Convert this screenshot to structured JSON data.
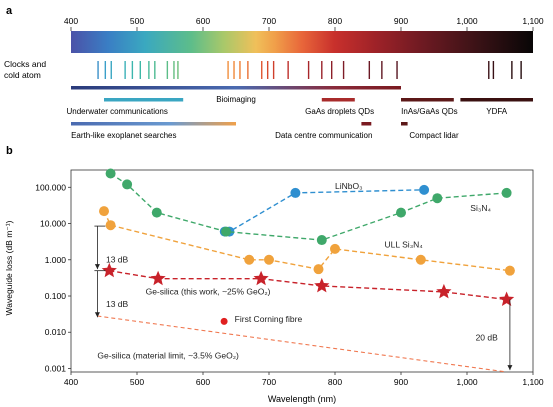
{
  "panel_a": {
    "label": "a",
    "ticks": [
      "400",
      "500",
      "600",
      "700",
      "800",
      "900",
      "1,000",
      "1,100"
    ],
    "tick_values": [
      400,
      500,
      600,
      700,
      800,
      900,
      1000,
      1100
    ],
    "clocks_label_1": "Clocks and",
    "clocks_label_2": "cold atom",
    "clock_lines": [
      {
        "nm": 441,
        "color": "#3a8fc8"
      },
      {
        "nm": 452,
        "color": "#3a9fc8"
      },
      {
        "nm": 461,
        "color": "#3aa6c2"
      },
      {
        "nm": 482,
        "color": "#3bb0b8"
      },
      {
        "nm": 493,
        "color": "#3cb6ae"
      },
      {
        "nm": 505,
        "color": "#3eb8a6"
      },
      {
        "nm": 518,
        "color": "#45b99a"
      },
      {
        "nm": 527,
        "color": "#4dba92"
      },
      {
        "nm": 546,
        "color": "#5bbd87"
      },
      {
        "nm": 556,
        "color": "#64be80"
      },
      {
        "nm": 562,
        "color": "#6bbe7a"
      },
      {
        "nm": 638,
        "color": "#f08e3c"
      },
      {
        "nm": 647,
        "color": "#f0883a"
      },
      {
        "nm": 656,
        "color": "#ee7f36"
      },
      {
        "nm": 668,
        "color": "#e96f33"
      },
      {
        "nm": 689,
        "color": "#e0562f"
      },
      {
        "nm": 698,
        "color": "#d84a2d"
      },
      {
        "nm": 707,
        "color": "#cf3f2c"
      },
      {
        "nm": 729,
        "color": "#bd2f2a"
      },
      {
        "nm": 760,
        "color": "#a8262a"
      },
      {
        "nm": 780,
        "color": "#99222a"
      },
      {
        "nm": 795,
        "color": "#8d1f29"
      },
      {
        "nm": 813,
        "color": "#7e1c27"
      },
      {
        "nm": 852,
        "color": "#6b1824"
      },
      {
        "nm": 871,
        "color": "#611722"
      },
      {
        "nm": 894,
        "color": "#561520"
      },
      {
        "nm": 1033,
        "color": "#3a1116"
      },
      {
        "nm": 1040,
        "color": "#381015"
      },
      {
        "nm": 1068,
        "color": "#2a0d10"
      },
      {
        "nm": 1082,
        "color": "#240c0e"
      }
    ],
    "applications": [
      {
        "name": "Bioimaging",
        "from": 400,
        "to": 900,
        "row": 0,
        "gradient": true,
        "color": "#2a3a7a",
        "label_nm": 650,
        "label_row": 0
      },
      {
        "name": "Underwater communications",
        "from": 450,
        "to": 570,
        "row": 1,
        "gradient": false,
        "color": "#3aa6c2",
        "label_nm": 470,
        "label_row": 1
      },
      {
        "name": "GaAs droplets QDs",
        "from": 780,
        "to": 830,
        "row": 1,
        "gradient": false,
        "color": "#a82b2b",
        "label_nm": 807,
        "label_row": 1
      },
      {
        "name": "InAs/GaAs QDs",
        "from": 900,
        "to": 980,
        "row": 1,
        "gradient": false,
        "color": "#5c1818",
        "label_nm": 943,
        "label_row": 1
      },
      {
        "name": "YDFA",
        "from": 990,
        "to": 1100,
        "row": 1,
        "gradient": false,
        "color": "#3a1010",
        "label_nm": 1045,
        "label_row": 1
      },
      {
        "name": "Earth-like exoplanet searches",
        "from": 400,
        "to": 650,
        "row": 2,
        "gradient": true,
        "color": "#4a6ab0",
        "label_nm": 480,
        "label_row": 2
      },
      {
        "name": "Data centre communication",
        "from": 840,
        "to": 855,
        "row": 2,
        "gradient": false,
        "color": "#7a1a20",
        "label_nm": 783,
        "label_row": 2
      },
      {
        "name": "Compact lidar",
        "from": 900,
        "to": 910,
        "row": 2,
        "gradient": false,
        "color": "#5c1818",
        "label_nm": 950,
        "label_row": 2
      }
    ]
  },
  "chart_data": {
    "type": "line",
    "label": "b",
    "xlabel": "Wavelength (nm)",
    "ylabel": "Waveguide loss (dB m⁻¹)",
    "xlim": [
      400,
      1100
    ],
    "ylim": [
      0.0008,
      300
    ],
    "log_y": true,
    "x_ticks": [
      400,
      500,
      600,
      700,
      800,
      900,
      1000,
      1100
    ],
    "x_tick_labels": [
      "400",
      "500",
      "600",
      "700",
      "800",
      "900",
      "1,000",
      "1,100"
    ],
    "y_ticks": [
      100,
      10,
      1,
      0.1,
      0.01,
      0.001
    ],
    "y_tick_labels": [
      "100.000",
      "10.000",
      "1.000",
      "0.100",
      "0.010",
      "0.001"
    ],
    "series": [
      {
        "name": "LiNbO3",
        "label": "LiNbO₃",
        "color": "#2f8fd0",
        "marker": "circle",
        "x": [
          633,
          640,
          740,
          935
        ],
        "y": [
          6,
          6,
          70,
          85
        ]
      },
      {
        "name": "Si3N4",
        "label": "Si₃N₄",
        "color": "#3fa86a",
        "marker": "circle",
        "x": [
          460,
          485,
          530,
          635,
          780,
          900,
          955,
          1060
        ],
        "y": [
          240,
          120,
          20,
          6,
          3.5,
          20,
          50,
          70
        ]
      },
      {
        "name": "ULL Si3N4",
        "label": "ULL Si₃N₄",
        "color": "#f0a23c",
        "marker": "circle",
        "x": [
          450,
          460,
          670,
          700,
          775,
          800,
          930,
          1065
        ],
        "y": [
          22,
          9,
          1,
          1,
          0.55,
          2,
          1,
          0.5
        ]
      },
      {
        "name": "Ge-silica (this work, ~25% GeO2)",
        "label": "Ge-silica (this work, ~25% GeO₂)",
        "color": "#c8222a",
        "marker": "star",
        "x": [
          458,
          532,
          688,
          780,
          965,
          1060
        ],
        "y": [
          0.5,
          0.3,
          0.3,
          0.19,
          0.13,
          0.08
        ]
      },
      {
        "name": "Ge-silica (material limit, ~3.5% GeO2)",
        "label": "Ge-silica (material limit, ~3.5% GeO₂)",
        "color": "#f07850",
        "marker": "none",
        "dashed": true,
        "x": [
          440,
          1060
        ],
        "y": [
          0.028,
          0.0008
        ]
      },
      {
        "name": "First Corning fibre",
        "label": "First Corning fibre",
        "color": "#e02020",
        "marker": "dot",
        "x": [
          632
        ],
        "y": [
          0.02
        ]
      }
    ],
    "annotations": {
      "db13_top": "13 dB",
      "db13_bottom": "13 dB",
      "db20": "20 dB",
      "corning": "First Corning fibre"
    }
  }
}
